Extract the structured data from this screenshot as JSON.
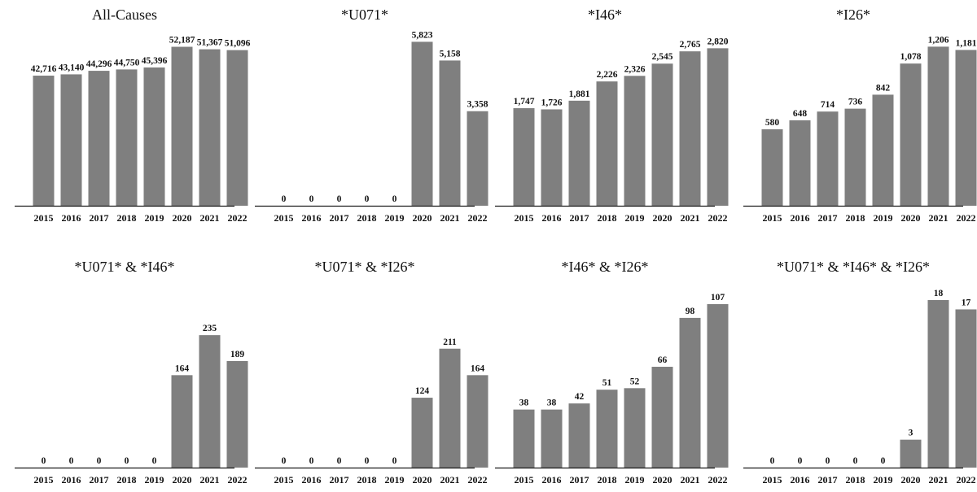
{
  "chart_data": [
    {
      "type": "bar",
      "title": "All-Causes",
      "categories": [
        "2015",
        "2016",
        "2017",
        "2018",
        "2019",
        "2020",
        "2021",
        "2022"
      ],
      "values": [
        42716,
        43140,
        44296,
        44750,
        45396,
        52187,
        51367,
        51096
      ],
      "value_labels": [
        "42,716",
        "43,140",
        "44,296",
        "44,750",
        "45,396",
        "52,187",
        "51,367",
        "51,096"
      ],
      "ylim": [
        0,
        55000
      ]
    },
    {
      "type": "bar",
      "title": "*U071*",
      "categories": [
        "2015",
        "2016",
        "2017",
        "2018",
        "2019",
        "2020",
        "2021",
        "2022"
      ],
      "values": [
        0,
        0,
        0,
        0,
        0,
        5823,
        5158,
        3358
      ],
      "value_labels": [
        "0",
        "0",
        "0",
        "0",
        "0",
        "5,823",
        "5,158",
        "3,358"
      ],
      "ylim": [
        0,
        5950
      ]
    },
    {
      "type": "bar",
      "title": "*I46*",
      "categories": [
        "2015",
        "2016",
        "2017",
        "2018",
        "2019",
        "2020",
        "2021",
        "2022"
      ],
      "values": [
        1747,
        1726,
        1881,
        2226,
        2326,
        2545,
        2765,
        2820
      ],
      "value_labels": [
        "1,747",
        "1,726",
        "1,881",
        "2,226",
        "2,326",
        "2,545",
        "2,765",
        "2,820"
      ],
      "ylim": [
        0,
        3000
      ]
    },
    {
      "type": "bar",
      "title": "*I26*",
      "categories": [
        "2015",
        "2016",
        "2017",
        "2018",
        "2019",
        "2020",
        "2021",
        "2022"
      ],
      "values": [
        580,
        648,
        714,
        736,
        842,
        1078,
        1206,
        1181
      ],
      "value_labels": [
        "580",
        "648",
        "714",
        "736",
        "842",
        "1,078",
        "1,206",
        "1,181"
      ],
      "ylim": [
        0,
        1270
      ]
    },
    {
      "type": "bar",
      "title": "*U071* & *I46*",
      "categories": [
        "2015",
        "2016",
        "2017",
        "2018",
        "2019",
        "2020",
        "2021",
        "2022"
      ],
      "values": [
        0,
        0,
        0,
        0,
        0,
        164,
        235,
        189
      ],
      "value_labels": [
        "0",
        "0",
        "0",
        "0",
        "0",
        "164",
        "235",
        "189"
      ],
      "ylim": [
        0,
        290
      ]
    },
    {
      "type": "bar",
      "title": "*U071* & *I26*",
      "categories": [
        "2015",
        "2016",
        "2017",
        "2018",
        "2019",
        "2020",
        "2021",
        "2022"
      ],
      "values": [
        0,
        0,
        0,
        0,
        0,
        124,
        211,
        164
      ],
      "value_labels": [
        "0",
        "0",
        "0",
        "0",
        "0",
        "124",
        "211",
        "164"
      ],
      "ylim": [
        0,
        290
      ]
    },
    {
      "type": "bar",
      "title": "*I46* & *I26*",
      "categories": [
        "2015",
        "2016",
        "2017",
        "2018",
        "2019",
        "2020",
        "2021",
        "2022"
      ],
      "values": [
        38,
        38,
        42,
        51,
        52,
        66,
        98,
        107
      ],
      "value_labels": [
        "38",
        "38",
        "42",
        "51",
        "52",
        "66",
        "98",
        "107"
      ],
      "ylim": [
        0,
        107
      ]
    },
    {
      "type": "bar",
      "title": "*U071* & *I46* & *I26*",
      "categories": [
        "2015",
        "2016",
        "2017",
        "2018",
        "2019",
        "2020",
        "2021",
        "2022"
      ],
      "values": [
        0,
        0,
        0,
        0,
        0,
        3,
        18,
        17
      ],
      "value_labels": [
        "0",
        "0",
        "0",
        "0",
        "0",
        "3",
        "18",
        "17"
      ],
      "ylim": [
        0,
        18
      ]
    }
  ]
}
